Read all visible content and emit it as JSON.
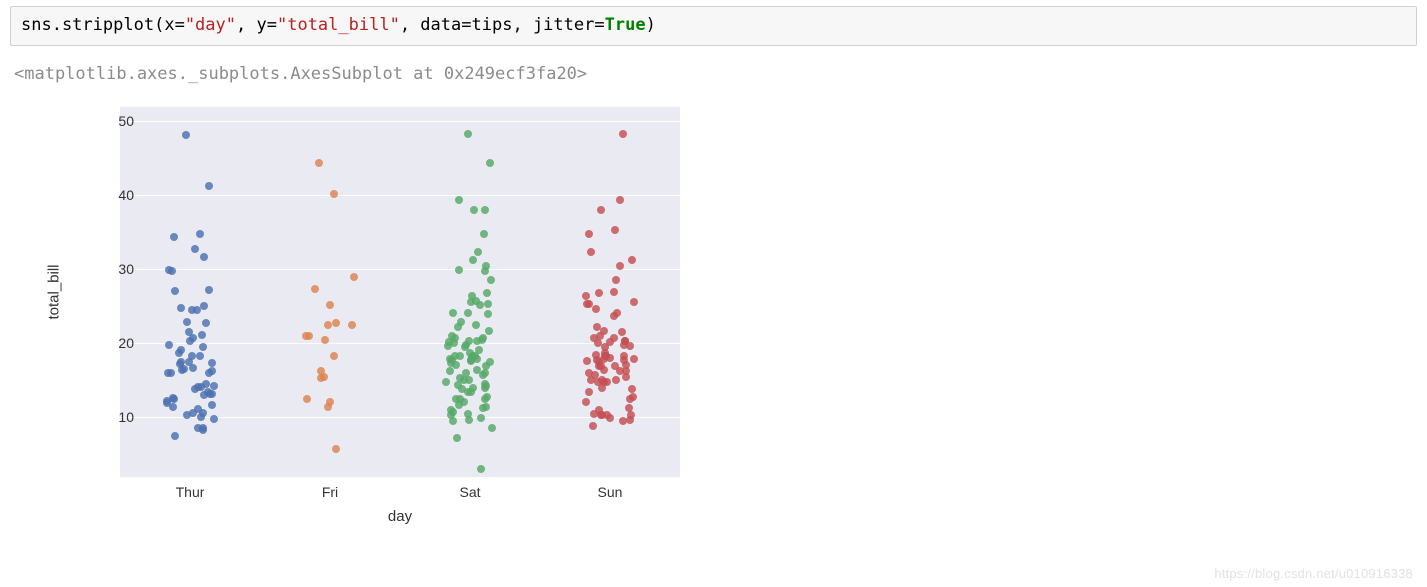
{
  "code_cell": {
    "tokens": [
      {
        "t": "sns.stripplot",
        "c": "func"
      },
      {
        "t": "(",
        "c": "paren"
      },
      {
        "t": "x",
        "c": "kw"
      },
      {
        "t": "=",
        "c": "eq"
      },
      {
        "t": "\"day\"",
        "c": "str"
      },
      {
        "t": ", ",
        "c": "func"
      },
      {
        "t": "y",
        "c": "kw"
      },
      {
        "t": "=",
        "c": "eq"
      },
      {
        "t": "\"total_bill\"",
        "c": "str"
      },
      {
        "t": ", ",
        "c": "func"
      },
      {
        "t": "data",
        "c": "kw"
      },
      {
        "t": "=",
        "c": "eq"
      },
      {
        "t": "tips",
        "c": "func"
      },
      {
        "t": ", ",
        "c": "func"
      },
      {
        "t": "jitter",
        "c": "kw"
      },
      {
        "t": "=",
        "c": "eq"
      },
      {
        "t": "True",
        "c": "bool"
      },
      {
        "t": ")",
        "c": "paren"
      }
    ]
  },
  "output_repr": "<matplotlib.axes._subplots.AxesSubplot at 0x249ecf3fa20>",
  "watermark": "https://blog.csdn.net/u010916338",
  "chart": {
    "type": "strip",
    "background_color": "#eaeaf2",
    "grid_color": "#ffffff",
    "xlabel": "day",
    "ylabel": "total_bill",
    "label_fontsize": 15,
    "tick_fontsize": 14,
    "categories": [
      "Thur",
      "Fri",
      "Sat",
      "Sun"
    ],
    "colors": {
      "Thur": "#4c72b0",
      "Fri": "#dd8452",
      "Sat": "#55a868",
      "Sun": "#c44e52"
    },
    "y_ticks": [
      10,
      20,
      30,
      40,
      50
    ],
    "ylim": [
      2,
      52
    ],
    "jitter_width": 0.35,
    "point_radius": 4,
    "point_opacity": 0.82,
    "series": {
      "Thur": [
        27.2,
        22.76,
        17.29,
        19.44,
        16.66,
        10.07,
        32.68,
        15.98,
        34.83,
        13.03,
        18.28,
        24.71,
        21.16,
        11.69,
        14.26,
        15.95,
        12.48,
        29.8,
        8.52,
        14.52,
        11.38,
        22.82,
        19.08,
        20.27,
        11.17,
        12.26,
        18.26,
        8.51,
        10.33,
        14.15,
        16.0,
        13.16,
        17.47,
        34.3,
        41.19,
        27.05,
        16.43,
        8.35,
        18.64,
        11.87,
        9.78,
        7.51,
        14.07,
        13.13,
        17.26,
        24.55,
        19.77,
        29.85,
        48.17,
        25.0,
        13.39,
        16.49,
        21.5,
        12.66,
        16.21,
        13.81,
        17.51,
        24.52,
        20.76,
        31.71,
        10.59,
        10.63,
        50.81,
        15.81,
        7.25,
        31.85,
        16.82,
        32.9,
        17.89,
        14.48,
        9.6,
        34.63,
        34.65,
        23.33,
        45.35,
        23.17,
        40.55,
        20.69,
        20.9,
        30.46,
        18.15,
        23.1,
        15.69,
        19.81,
        28.44,
        15.48,
        16.58,
        7.56,
        10.34,
        43.11,
        13.0,
        13.51,
        18.71,
        12.74,
        13.0,
        16.4,
        20.53,
        16.47,
        26.59,
        38.73,
        24.27,
        12.76,
        30.06,
        25.89,
        48.33,
        13.27,
        28.17,
        12.9,
        28.15,
        11.59,
        7.74,
        30.14,
        12.16,
        13.42,
        8.58,
        15.98,
        13.42,
        16.27,
        10.09
      ],
      "Fri": [
        28.97,
        22.49,
        5.75,
        16.32,
        22.75,
        40.17,
        27.28,
        12.03,
        21.01,
        12.46,
        11.35,
        15.38,
        44.3,
        22.42,
        20.92,
        15.36,
        20.49,
        25.21,
        18.24,
        14.31,
        14.0,
        7.25,
        38.07,
        23.95,
        25.71,
        17.31,
        29.93,
        10.65,
        12.43,
        24.08,
        11.69,
        13.42,
        14.26,
        15.95,
        12.48,
        29.8,
        8.52,
        14.52,
        11.38,
        22.82,
        19.08,
        20.27,
        11.17,
        12.26,
        18.26,
        8.51,
        10.33,
        14.15,
        13.16,
        17.47,
        27.05,
        16.43,
        8.35,
        18.64,
        11.87,
        9.78,
        7.51,
        14.07,
        13.13,
        17.26,
        24.55,
        19.77,
        29.85,
        25.0,
        13.39,
        16.49,
        21.5,
        12.66,
        16.21,
        13.81,
        17.51,
        24.52,
        20.76,
        31.71,
        10.59,
        10.63,
        15.81,
        7.25,
        31.85,
        16.82,
        32.9,
        17.89,
        14.48,
        9.6,
        23.33,
        23.17,
        20.69,
        20.9,
        30.46,
        18.15,
        23.1,
        15.69,
        19.81,
        28.44,
        15.48,
        16.58,
        7.56,
        10.34,
        13.0,
        13.51,
        18.71,
        12.74,
        13.0,
        16.4,
        20.53,
        16.47,
        26.59,
        24.27,
        12.76,
        30.06,
        25.89,
        13.27,
        28.17,
        12.9,
        28.15,
        11.59,
        7.74,
        30.14,
        12.16
      ],
      "Sat": [
        20.65,
        17.92,
        20.29,
        15.77,
        39.42,
        19.82,
        17.81,
        13.37,
        12.69,
        21.7,
        19.65,
        9.55,
        18.35,
        15.06,
        20.69,
        17.78,
        24.06,
        16.31,
        16.93,
        18.69,
        31.27,
        16.04,
        17.46,
        13.94,
        9.68,
        30.4,
        18.29,
        22.23,
        32.4,
        28.55,
        18.04,
        12.54,
        10.29,
        34.81,
        9.94,
        25.56,
        19.49,
        38.01,
        26.41,
        11.24,
        48.27,
        20.29,
        13.81,
        11.02,
        18.29,
        17.59,
        20.08,
        16.45,
        3.07,
        20.23,
        15.01,
        12.02,
        17.07,
        26.86,
        25.28,
        14.73,
        10.51,
        17.92,
        44.3,
        22.42,
        20.92,
        15.36,
        20.49,
        25.21,
        18.24,
        14.31,
        14.0,
        7.25,
        38.07,
        23.95,
        25.71,
        17.31,
        29.93,
        10.65,
        12.43,
        24.08,
        11.69,
        13.42,
        14.26,
        15.95,
        12.48,
        29.8,
        8.52,
        14.52,
        11.38,
        22.82,
        19.08,
        20.27,
        11.17,
        12.26,
        18.26,
        8.51,
        10.33,
        14.15,
        16.0,
        13.16,
        17.47,
        50.81,
        27.05,
        16.43,
        8.35,
        18.64,
        11.87,
        9.78,
        7.51,
        14.07,
        13.13,
        17.26,
        24.55,
        19.77,
        29.85,
        48.17,
        25.0,
        13.39,
        16.49,
        21.5,
        12.66,
        16.21,
        13.81
      ],
      "Sun": [
        16.99,
        10.34,
        21.01,
        23.68,
        24.59,
        25.29,
        8.77,
        26.88,
        15.04,
        14.78,
        10.27,
        35.26,
        15.42,
        18.43,
        14.83,
        21.58,
        10.33,
        16.29,
        16.97,
        20.65,
        17.92,
        20.29,
        15.77,
        39.42,
        19.82,
        17.81,
        13.37,
        12.69,
        21.7,
        19.65,
        9.55,
        18.35,
        15.06,
        20.69,
        17.78,
        24.06,
        16.31,
        16.93,
        18.69,
        31.27,
        16.04,
        17.46,
        13.94,
        9.68,
        30.4,
        18.29,
        22.23,
        32.4,
        28.55,
        18.04,
        12.54,
        10.29,
        34.81,
        9.94,
        25.56,
        19.49,
        38.01,
        26.41,
        11.24,
        48.27,
        20.29,
        13.81,
        11.02,
        18.29,
        17.59,
        20.08,
        16.45,
        20.23,
        15.01,
        12.02,
        17.07,
        26.86,
        25.28,
        14.73,
        10.51,
        17.92,
        27.2,
        22.76,
        17.29,
        19.44,
        16.66,
        10.07,
        32.68,
        15.98,
        34.83,
        13.03,
        18.28,
        24.71,
        21.16,
        28.97,
        22.49,
        40.55,
        16.32,
        22.75,
        40.17,
        27.28,
        12.03,
        21.01,
        12.46,
        11.35,
        15.38,
        44.3,
        22.42,
        20.92,
        15.36,
        20.49,
        25.21,
        18.24,
        14.31,
        45.35,
        7.25,
        38.07,
        23.95,
        25.71,
        17.31,
        29.93,
        10.65,
        12.43,
        24.08
      ]
    }
  }
}
